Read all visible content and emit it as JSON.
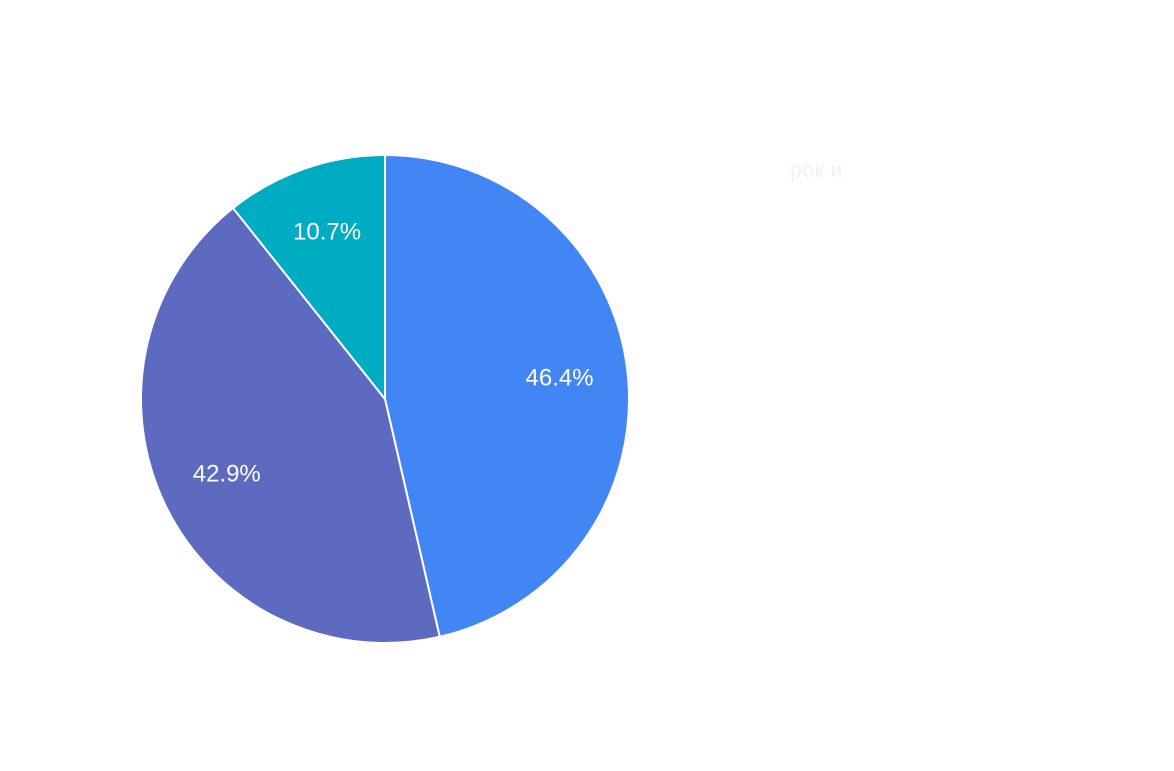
{
  "chart_data": {
    "type": "pie",
    "start_angle_deg": 0,
    "direction": "clockwise",
    "series": [
      {
        "values": [
          46.4,
          42.9,
          10.7
        ],
        "labels": [
          "46.4%",
          "42.9%",
          "10.7%"
        ],
        "colors": [
          "#4285F4",
          "#5C6BC0",
          "#00ACC1"
        ]
      }
    ],
    "legend": {
      "position": "right",
      "entries": [
        "",
        "",
        "рок и"
      ]
    }
  }
}
